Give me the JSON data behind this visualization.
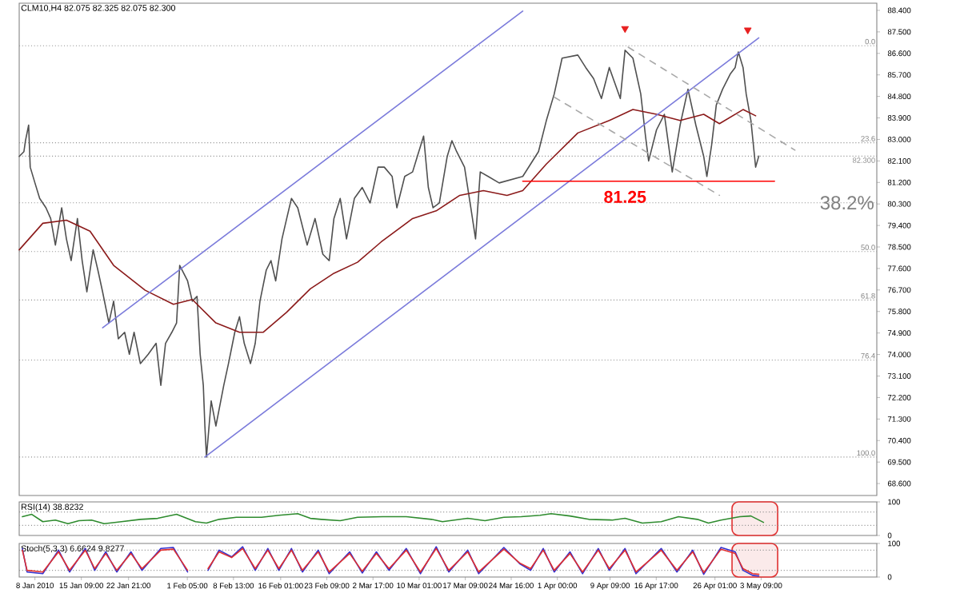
{
  "chart_data": [
    {
      "type": "line",
      "title": "CLM10,H4 82.075 82.325 82.075 82.300",
      "xlim": [
        "2010-01-05T12:00",
        "2010-05-21T18:00"
      ],
      "ylim": [
        68.1,
        88.7
      ],
      "tick_labels": "y",
      "yticks": [
        {
          "value": 88.4,
          "label": "88.400"
        },
        {
          "value": 87.5,
          "label": "87.500"
        },
        {
          "value": 86.6,
          "label": "86.600"
        },
        {
          "value": 85.7,
          "label": "85.700"
        },
        {
          "value": 84.8,
          "label": "84.800"
        },
        {
          "value": 83.9,
          "label": "83.900"
        },
        {
          "value": 83.0,
          "label": "83.000"
        },
        {
          "value": 82.1,
          "label": "82.100"
        },
        {
          "value": 81.2,
          "label": "81.200"
        },
        {
          "value": 80.3,
          "label": "80.300"
        },
        {
          "value": 79.4,
          "label": "79.400"
        },
        {
          "value": 78.5,
          "label": "78.500"
        },
        {
          "value": 77.6,
          "label": "77.600"
        },
        {
          "value": 76.7,
          "label": "76.700"
        },
        {
          "value": 75.8,
          "label": "75.800"
        },
        {
          "value": 74.9,
          "label": "74.900"
        },
        {
          "value": 74.0,
          "label": "74.000"
        },
        {
          "value": 73.1,
          "label": "73.100"
        },
        {
          "value": 72.2,
          "label": "72.200"
        },
        {
          "value": 71.3,
          "label": "71.300"
        },
        {
          "value": 70.4,
          "label": "70.400"
        },
        {
          "value": 69.5,
          "label": "69.500"
        },
        {
          "value": 68.6,
          "label": "68.600"
        }
      ],
      "series": [
        {
          "color": "#505050",
          "x": [
            "2010-01-05T12:00",
            "2010-01-06T06:00",
            "2010-01-06T12:00",
            "2010-01-07T00:00",
            "2010-01-07T06:00",
            "2010-01-08T00:00",
            "2010-01-08T18:00",
            "2010-01-09T18:00",
            "2010-01-10T12:00",
            "2010-01-11T06:00",
            "2010-01-12T06:00",
            "2010-01-13T00:00",
            "2010-01-13T18:00",
            "2010-01-14T18:00",
            "2010-01-15T12:00",
            "2010-01-16T06:00",
            "2010-01-17T06:00",
            "2010-01-18T00:00",
            "2010-01-18T18:00",
            "2010-01-19T18:00",
            "2010-01-20T12:00",
            "2010-01-21T06:00",
            "2010-01-22T06:00",
            "2010-01-23T00:00",
            "2010-01-23T18:00",
            "2010-01-24T18:00",
            "2010-01-26T00:00",
            "2010-01-27T06:00",
            "2010-01-28T00:00",
            "2010-01-28T18:00",
            "2010-01-29T18:00",
            "2010-01-30T12:00",
            "2010-01-31T00:00",
            "2010-02-01T06:00",
            "2010-02-02T00:00",
            "2010-02-02T18:00",
            "2010-02-03T06:00",
            "2010-02-03T18:00",
            "2010-02-04T00:00",
            "2010-02-04T06:00",
            "2010-02-05T00:00",
            "2010-02-05T18:00",
            "2010-02-07T00:00",
            "2010-02-07T18:00",
            "2010-02-08T18:00",
            "2010-02-09T12:00",
            "2010-02-10T06:00",
            "2010-02-11T06:00",
            "2010-02-12T00:00",
            "2010-02-12T18:00",
            "2010-02-13T18:00",
            "2010-02-14T12:00",
            "2010-02-15T06:00",
            "2010-02-16T06:00",
            "2010-02-17T00:00",
            "2010-02-17T18:00",
            "2010-02-18T18:00",
            "2010-02-20T06:00",
            "2010-02-21T12:00",
            "2010-02-22T18:00",
            "2010-02-23T18:00",
            "2010-02-24T12:00",
            "2010-02-25T12:00",
            "2010-02-26T12:00",
            "2010-02-27T18:00",
            "2010-03-01T00:00",
            "2010-03-02T06:00",
            "2010-03-03T12:00",
            "2010-03-04T12:00",
            "2010-03-05T18:00",
            "2010-03-06T12:00",
            "2010-03-07T18:00",
            "2010-03-09T00:00",
            "2010-03-09T18:00",
            "2010-03-10T18:00",
            "2010-03-11T12:00",
            "2010-03-12T06:00",
            "2010-03-13T06:00",
            "2010-03-14T12:00",
            "2010-03-15T06:00",
            "2010-03-16T00:00",
            "2010-03-17T06:00",
            "2010-03-18T06:00",
            "2010-03-19T00:00",
            "2010-03-19T18:00",
            "2010-03-21T00:00",
            "2010-03-22T18:00",
            "2010-03-26T12:00",
            "2010-03-29T00:00",
            "2010-03-30T06:00",
            "2010-03-31T12:00",
            "2010-04-01T18:00",
            "2010-04-04T06:00",
            "2010-04-05T12:00",
            "2010-04-06T18:00",
            "2010-04-08T00:00",
            "2010-04-09T06:00",
            "2010-04-11T00:00",
            "2010-04-11T18:00",
            "2010-04-13T00:00",
            "2010-04-14T06:00",
            "2010-04-15T00:00",
            "2010-04-15T12:00",
            "2010-04-16T18:00",
            "2010-04-18T00:00",
            "2010-04-19T06:00",
            "2010-04-20T12:00",
            "2010-04-21T18:00",
            "2010-04-23T00:00",
            "2010-04-24T06:00",
            "2010-04-24T18:00",
            "2010-04-25T12:00",
            "2010-04-26T06:00",
            "2010-04-27T06:00",
            "2010-04-28T12:00",
            "2010-04-29T06:00",
            "2010-04-29T18:00",
            "2010-04-30T12:00",
            "2010-05-01T00:00",
            "2010-05-01T18:00",
            "2010-05-02T06:00",
            "2010-05-02T12:00",
            "2010-05-03T00:00"
          ],
          "values": [
            82.29,
            82.49,
            82.95,
            83.6,
            81.84,
            81.18,
            80.53,
            80.14,
            79.69,
            78.58,
            80.14,
            78.84,
            77.93,
            79.69,
            77.93,
            76.62,
            78.38,
            77.53,
            76.62,
            75.32,
            76.23,
            74.66,
            74.93,
            74.01,
            74.93,
            73.62,
            74.01,
            74.47,
            72.71,
            74.47,
            74.93,
            75.32,
            77.73,
            77.08,
            76.23,
            76.43,
            74.01,
            72.71,
            71.01,
            69.71,
            72.06,
            71.01,
            72.71,
            73.62,
            74.93,
            75.58,
            74.47,
            73.62,
            74.47,
            76.23,
            77.53,
            77.93,
            77.08,
            78.84,
            79.69,
            80.53,
            80.14,
            78.58,
            79.69,
            78.19,
            77.93,
            79.69,
            80.53,
            78.84,
            80.53,
            80.99,
            80.34,
            81.84,
            81.84,
            81.45,
            80.14,
            81.45,
            81.64,
            82.29,
            83.14,
            80.99,
            80.14,
            80.34,
            82.29,
            82.95,
            82.49,
            81.84,
            80.14,
            78.84,
            81.64,
            81.45,
            81.18,
            81.45,
            82.49,
            83.79,
            84.9,
            86.4,
            86.53,
            86.01,
            85.55,
            84.71,
            86.01,
            84.71,
            86.73,
            86.4,
            84.9,
            83.14,
            82.1,
            83.4,
            84.05,
            81.64,
            83.6,
            85.1,
            83.6,
            82.29,
            81.45,
            82.75,
            84.44,
            85.1,
            85.75,
            86.01,
            86.66,
            86.01,
            84.9,
            83.79,
            82.49,
            81.84,
            82.3
          ]
        },
        {
          "color": "#8b1a1a",
          "x": [
            "2010-01-05T12:00",
            "2010-01-09T06:00",
            "2010-01-13T00:00",
            "2010-01-16T18:00",
            "2010-01-20T12:00",
            "2010-01-25T12:00",
            "2010-01-30T00:00",
            "2010-02-02T00:00",
            "2010-02-05T18:00",
            "2010-02-09T12:00",
            "2010-02-13T06:00",
            "2010-02-17T00:00",
            "2010-02-20T18:00",
            "2010-02-24T12:00",
            "2010-02-28T06:00",
            "2010-03-04T00:00",
            "2010-03-09T00:00",
            "2010-03-12T18:00",
            "2010-03-16T12:00",
            "2010-03-20T06:00",
            "2010-03-24T00:00",
            "2010-03-26T12:00",
            "2010-03-30T06:00",
            "2010-04-04T06:00",
            "2010-04-09T06:00",
            "2010-04-13T00:00",
            "2010-04-16T18:00",
            "2010-04-20T12:00",
            "2010-04-24T06:00",
            "2010-04-26T18:00",
            "2010-04-30T12:00",
            "2010-05-02T12:00"
          ],
          "values": [
            78.38,
            79.49,
            79.62,
            79.16,
            77.73,
            76.69,
            76.1,
            76.3,
            75.32,
            74.93,
            74.93,
            75.77,
            76.75,
            77.4,
            77.86,
            78.71,
            79.69,
            80.01,
            80.66,
            80.86,
            80.66,
            80.86,
            81.97,
            83.27,
            83.79,
            84.25,
            84.05,
            83.79,
            84.05,
            83.66,
            84.25,
            83.99
          ]
        },
        {
          "color": "#7b7bdb",
          "x": [
            "2010-01-18T18:00",
            "2010-03-26T12:00"
          ],
          "values": [
            75.12,
            88.37
          ]
        },
        {
          "color": "#7b7bdb",
          "x": [
            "2010-02-04T00:00",
            "2010-05-03T00:00"
          ],
          "values": [
            69.71,
            87.25
          ]
        },
        {
          "color": "#a8a8a8",
          "line_style": "dashed",
          "x": [
            "2010-04-12T06:00",
            "2010-05-08T18:00"
          ],
          "values": [
            86.86,
            82.55
          ]
        },
        {
          "color": "#a8a8a8",
          "line_style": "dashed",
          "x": [
            "2010-03-31T12:00",
            "2010-04-26T18:00"
          ],
          "values": [
            84.77,
            80.66
          ]
        },
        {
          "color": "#ff0000",
          "x": [
            "2010-03-26T12:00",
            "2010-05-05T12:00"
          ],
          "values": [
            81.25,
            81.25
          ]
        },
        {
          "type": "scatter",
          "marker": "triangle",
          "color": "#e82020",
          "x": [
            "2010-04-11T18:00",
            "2010-05-01T06:00"
          ],
          "values": [
            87.64,
            87.58
          ]
        }
      ],
      "ref_lines": [
        {
          "axis": "y",
          "value": 86.92,
          "color": "#909090",
          "line_style": "dotted"
        },
        {
          "axis": "y",
          "value": 82.86,
          "color": "#909090",
          "line_style": "dotted"
        },
        {
          "axis": "y",
          "value": 82.3,
          "label": "82.300",
          "color": "#909090",
          "line_style": "dotted"
        },
        {
          "axis": "y",
          "value": 80.35,
          "color": "#909090",
          "line_style": "dotted"
        },
        {
          "axis": "y",
          "value": 78.31,
          "color": "#909090",
          "line_style": "dotted"
        },
        {
          "axis": "y",
          "value": 76.28,
          "color": "#909090",
          "line_style": "dotted"
        },
        {
          "axis": "y",
          "value": 73.77,
          "color": "#909090",
          "line_style": "dotted"
        },
        {
          "axis": "y",
          "value": 69.71,
          "color": "#909090",
          "line_style": "dotted"
        }
      ],
      "annotations": [
        {
          "text": "81.25",
          "x": "2010-04-11T18:00",
          "y": 81.25
        },
        {
          "text": "38.2%",
          "x": "2010-05-21T18:00",
          "y": 80.35
        },
        {
          "text": "0.0",
          "x": "2010-05-21T18:00",
          "y": 86.92
        },
        {
          "text": "23.6",
          "x": "2010-05-21T18:00",
          "y": 82.86
        },
        {
          "text": "50.0",
          "x": "2010-05-21T18:00",
          "y": 78.31
        },
        {
          "text": "61.8",
          "x": "2010-05-21T18:00",
          "y": 76.28
        },
        {
          "text": "76.4",
          "x": "2010-05-21T18:00",
          "y": 73.77
        },
        {
          "text": "100.0",
          "x": "2010-05-21T18:00",
          "y": 69.71
        }
      ]
    },
    {
      "type": "line",
      "title": "RSI(14) 38.8232",
      "xlim": [
        "2010-01-05T12:00",
        "2010-05-21T18:00"
      ],
      "ylim": [
        0,
        100
      ],
      "yticks": [
        0,
        100
      ],
      "tick_labels": "y",
      "series": [
        {
          "color": "#2e8b2e",
          "x": [
            "2010-01-06T00:00",
            "2010-01-07T12:00",
            "2010-01-09T06:00",
            "2010-01-11T06:00",
            "2010-01-13T06:00",
            "2010-01-15T00:00",
            "2010-01-17T00:00",
            "2010-01-19T00:00",
            "2010-01-21T18:00",
            "2010-01-24T18:00",
            "2010-01-27T12:00",
            "2010-01-30T12:00",
            "2010-02-02T12:00",
            "2010-02-04T06:00",
            "2010-02-06T06:00",
            "2010-02-09T00:00",
            "2010-02-13T00:00",
            "2010-02-15T18:00",
            "2010-02-18T18:00",
            "2010-02-20T18:00",
            "2010-02-22T12:00",
            "2010-02-25T12:00",
            "2010-02-28T06:00",
            "2010-03-04T06:00",
            "2010-03-08T00:00",
            "2010-03-12T00:00",
            "2010-03-13T18:00",
            "2010-03-17T18:00",
            "2010-03-20T12:00",
            "2010-03-23T12:00",
            "2010-03-26T06:00",
            "2010-03-29T06:00",
            "2010-03-31T00:00",
            "2010-04-03T00:00",
            "2010-04-06T00:00",
            "2010-04-09T18:00",
            "2010-04-11T18:00",
            "2010-04-14T12:00",
            "2010-04-17T12:00",
            "2010-04-20T06:00",
            "2010-04-23T06:00",
            "2010-04-25T00:00",
            "2010-04-27T00:00",
            "2010-04-30T00:00",
            "2010-05-01T18:00",
            "2010-05-03T18:00"
          ],
          "values": [
            56,
            63,
            41,
            46,
            35,
            44,
            46,
            35,
            41,
            48,
            51,
            63,
            41,
            37,
            48,
            54,
            54,
            60,
            65,
            51,
            48,
            44,
            54,
            56,
            56,
            48,
            41,
            51,
            44,
            54,
            56,
            60,
            65,
            58,
            48,
            46,
            51,
            37,
            41,
            56,
            48,
            37,
            46,
            56,
            58,
            39
          ]
        }
      ],
      "ref_lines": [
        {
          "axis": "y",
          "value": 70,
          "color": "#909090",
          "line_style": "dotted"
        },
        {
          "axis": "y",
          "value": 30,
          "color": "#909090",
          "line_style": "dotted"
        }
      ],
      "bands": [
        {
          "axis": "x",
          "from": "2010-04-28T18:00",
          "to": "2010-05-06T00:00",
          "color": "#e03030"
        }
      ]
    },
    {
      "type": "line",
      "title": "Stoch(5,3,3) 6.6624 9.8277",
      "xlim": [
        "2010-01-05T12:00",
        "2010-05-21T18:00"
      ],
      "ylim": [
        0,
        100
      ],
      "yticks": [
        0,
        100
      ],
      "xticks": [
        {
          "value": "2010-01-08",
          "label": "8 Jan 2010"
        },
        {
          "value": "2010-01-15T09:00",
          "label": "15 Jan 09:00"
        },
        {
          "value": "2010-01-22T21:00",
          "label": "22 Jan 21:00"
        },
        {
          "value": "2010-02-01T05:00",
          "label": "1 Feb 05:00"
        },
        {
          "value": "2010-02-08T13:00",
          "label": "8 Feb 13:00"
        },
        {
          "value": "2010-02-16T01:00",
          "label": "16 Feb 01:00"
        },
        {
          "value": "2010-02-23T09:00",
          "label": "23 Feb 09:00"
        },
        {
          "value": "2010-03-02T17:00",
          "label": "2 Mar 17:00"
        },
        {
          "value": "2010-03-10T01:00",
          "label": "10 Mar 01:00"
        },
        {
          "value": "2010-03-17T09:00",
          "label": "17 Mar 09:00"
        },
        {
          "value": "2010-03-24T16:00",
          "label": "24 Mar 16:00"
        },
        {
          "value": "2010-04-01T00:00",
          "label": "1 Apr 00:00"
        },
        {
          "value": "2010-04-09T09:00",
          "label": "9 Apr 09:00"
        },
        {
          "value": "2010-04-16T17:00",
          "label": "16 Apr 17:00"
        },
        {
          "value": "2010-04-26T01:00",
          "label": "26 Apr 01:00"
        },
        {
          "value": "2010-05-03T09:00",
          "label": "3 May 09:00"
        }
      ],
      "series": [
        {
          "color": "#3030d0",
          "x": [
            "2010-01-06T00:00",
            "2010-01-06T18:00",
            "2010-01-09T06:00",
            "2010-01-11T18:00",
            "2010-01-13T12:00",
            "2010-01-16T00:00",
            "2010-01-17T12:00",
            "2010-01-19T06:00",
            "2010-01-21T00:00",
            "2010-01-23T06:00",
            "2010-01-25T00:00",
            "2010-01-28T00:00",
            "2010-01-30T00:00",
            "2010-02-01T06:00",
            "2010-02-02T12:00",
            "2010-02-04T12:00",
            "2010-02-06T06:00",
            "2010-02-08T06:00",
            "2010-02-10T00:00",
            "2010-02-12T00:00",
            "2010-02-14T00:00",
            "2010-02-15T18:00",
            "2010-02-17T18:00",
            "2010-02-19T12:00",
            "2010-02-22T00:00",
            "2010-02-23T18:00",
            "2010-02-27T00:00",
            "2010-03-01T00:00",
            "2010-03-03T06:00",
            "2010-03-05T06:00",
            "2010-03-08T00:00",
            "2010-03-10T06:00",
            "2010-03-12T18:00",
            "2010-03-14T18:00",
            "2010-03-17T18:00",
            "2010-03-19T12:00",
            "2010-03-23T12:00",
            "2010-03-26T00:00",
            "2010-03-27T18:00",
            "2010-03-29T18:00",
            "2010-03-31T12:00",
            "2010-04-03T00:00",
            "2010-04-05T00:00",
            "2010-04-07T12:00",
            "2010-04-09T06:00",
            "2010-04-11T18:00",
            "2010-04-13T12:00",
            "2010-04-17T12:00",
            "2010-04-20T00:00",
            "2010-04-22T12:00",
            "2010-04-24T06:00",
            "2010-04-27T00:00",
            "2010-04-29T06:00",
            "2010-04-30T12:00",
            "2010-05-02T00:00",
            "2010-05-03T00:00"
          ],
          "values": [
            85,
            15,
            10,
            80,
            15,
            85,
            20,
            75,
            15,
            75,
            20,
            85,
            88,
            15,
            null,
            20,
            80,
            60,
            90,
            20,
            85,
            20,
            85,
            15,
            80,
            10,
            75,
            12,
            75,
            20,
            85,
            10,
            90,
            15,
            80,
            10,
            88,
            40,
            20,
            85,
            15,
            75,
            10,
            85,
            20,
            85,
            10,
            85,
            15,
            80,
            8,
            88,
            75,
            20,
            5,
            3
          ]
        },
        {
          "color": "#e03030",
          "x": [
            "2010-01-06T00:00",
            "2010-01-06T18:00",
            "2010-01-09T06:00",
            "2010-01-11T18:00",
            "2010-01-13T12:00",
            "2010-01-16T00:00",
            "2010-01-17T12:00",
            "2010-01-19T06:00",
            "2010-01-21T00:00",
            "2010-01-23T06:00",
            "2010-01-25T00:00",
            "2010-01-28T00:00",
            "2010-01-30T00:00",
            "2010-02-01T06:00",
            "2010-02-02T12:00",
            "2010-02-04T12:00",
            "2010-02-06T06:00",
            "2010-02-08T06:00",
            "2010-02-10T00:00",
            "2010-02-12T00:00",
            "2010-02-14T00:00",
            "2010-02-15T18:00",
            "2010-02-17T18:00",
            "2010-02-19T12:00",
            "2010-02-22T00:00",
            "2010-02-23T18:00",
            "2010-02-27T00:00",
            "2010-03-01T00:00",
            "2010-03-03T06:00",
            "2010-03-05T06:00",
            "2010-03-08T00:00",
            "2010-03-10T06:00",
            "2010-03-12T18:00",
            "2010-03-14T18:00",
            "2010-03-17T18:00",
            "2010-03-19T12:00",
            "2010-03-23T12:00",
            "2010-03-26T00:00",
            "2010-03-27T18:00",
            "2010-03-29T18:00",
            "2010-03-31T12:00",
            "2010-04-03T00:00",
            "2010-04-05T00:00",
            "2010-04-07T12:00",
            "2010-04-09T06:00",
            "2010-04-11T18:00",
            "2010-04-13T12:00",
            "2010-04-17T12:00",
            "2010-04-20T00:00",
            "2010-04-22T12:00",
            "2010-04-24T06:00",
            "2010-04-27T00:00",
            "2010-04-29T06:00",
            "2010-04-30T12:00",
            "2010-05-02T00:00",
            "2010-05-03T00:00"
          ],
          "values": [
            80,
            20,
            15,
            75,
            20,
            80,
            25,
            70,
            20,
            70,
            25,
            80,
            83,
            20,
            null,
            25,
            75,
            58,
            85,
            25,
            80,
            25,
            80,
            20,
            75,
            15,
            70,
            17,
            70,
            25,
            80,
            15,
            85,
            20,
            75,
            15,
            83,
            42,
            25,
            80,
            20,
            70,
            15,
            80,
            25,
            80,
            15,
            80,
            20,
            75,
            13,
            83,
            70,
            25,
            10,
            8
          ]
        }
      ],
      "ref_lines": [
        {
          "axis": "y",
          "value": 80,
          "color": "#909090",
          "line_style": "dotted"
        },
        {
          "axis": "y",
          "value": 20,
          "color": "#909090",
          "line_style": "dotted"
        }
      ],
      "bands": [
        {
          "axis": "x",
          "from": "2010-04-28T18:00",
          "to": "2010-05-06T00:00",
          "color": "#e03030"
        }
      ]
    }
  ]
}
